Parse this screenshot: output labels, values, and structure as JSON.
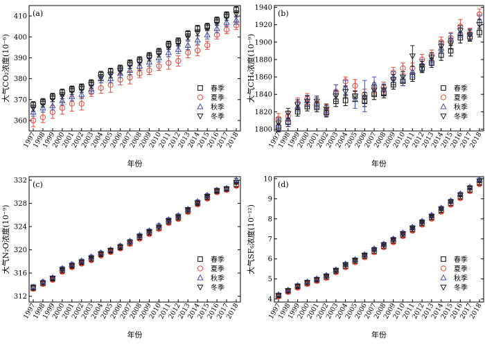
{
  "chart_data": [
    {
      "type": "scatter",
      "panel_label": "(a)",
      "xlabel": "年份",
      "ylabel": "大气CO₂浓度(10⁻⁶)",
      "ylim": [
        355,
        415
      ],
      "yticks": [
        360,
        370,
        380,
        390,
        400,
        410
      ],
      "x": [
        "1997",
        "1998",
        "1999",
        "2000",
        "2001",
        "2002",
        "2003",
        "2004",
        "2005",
        "2006",
        "2007",
        "2008",
        "2009",
        "2010",
        "2011",
        "2012",
        "2013",
        "2014",
        "2015",
        "2016",
        "2017",
        "2018"
      ],
      "series": [
        {
          "name": "春季",
          "marker": "square",
          "color": "#000000",
          "values": [
            367.5,
            369,
            371.5,
            373.5,
            375,
            376,
            378,
            382,
            383.5,
            385,
            387.5,
            389,
            391,
            393,
            396.5,
            398,
            401.5,
            404,
            405,
            408,
            410.5,
            413
          ],
          "err": [
            1.5,
            1.5,
            1.5,
            1.5,
            1.5,
            1.5,
            1.5,
            1.5,
            1.5,
            1.5,
            1.5,
            1.5,
            1.5,
            1.5,
            1.5,
            1.5,
            1.5,
            1.5,
            1.5,
            1.5,
            1.5,
            1.5
          ]
        },
        {
          "name": "夏季",
          "marker": "circle",
          "color": "#e0463b",
          "values": [
            360,
            361.5,
            364,
            366,
            368,
            368,
            373.5,
            375.5,
            377,
            379.5,
            380.5,
            382.5,
            384,
            386,
            387.5,
            388.5,
            392.5,
            393.5,
            396,
            401,
            403.5,
            405.5
          ],
          "err": [
            3,
            2.5,
            3,
            3,
            3.5,
            3,
            2,
            2.5,
            3.5,
            2.5,
            3,
            2,
            2,
            2,
            3,
            2.5,
            2.5,
            2.5,
            2,
            2,
            2,
            2
          ]
        },
        {
          "name": "秋季",
          "marker": "triangle-up",
          "color": "#3a4ea8",
          "values": [
            364,
            366,
            367,
            369.5,
            371.5,
            372.5,
            375,
            380,
            380,
            382.5,
            384,
            386,
            388,
            390,
            392.5,
            394,
            396,
            398.5,
            401,
            404,
            407,
            408
          ],
          "err": [
            2,
            2,
            2,
            2,
            2,
            2,
            2,
            2,
            2,
            2,
            2,
            2,
            2,
            2,
            2,
            2,
            2,
            2,
            2,
            2,
            2,
            2
          ]
        },
        {
          "name": "冬季",
          "marker": "triangle-down",
          "color": "#222222",
          "values": [
            366,
            368,
            370.5,
            372,
            374,
            375,
            377,
            380.5,
            382,
            384,
            386.5,
            388,
            390,
            392,
            395.5,
            397,
            400,
            402,
            404.5,
            407,
            409.5,
            411
          ],
          "err": [
            1.5,
            1.5,
            1.5,
            1.5,
            1.5,
            1.5,
            1.5,
            1.5,
            1.5,
            1.5,
            1.5,
            1.5,
            1.5,
            1.5,
            1.5,
            1.5,
            1.5,
            1.5,
            1.5,
            1.5,
            1.5,
            1.5
          ]
        }
      ],
      "legend": [
        "春季",
        "夏季",
        "秋季",
        "冬季"
      ],
      "legend_position": "lower-right"
    },
    {
      "type": "scatter",
      "panel_label": "(b)",
      "xlabel": "年份",
      "ylabel": "大气CH₄浓度(10⁻⁹)",
      "ylim": [
        1798,
        1942
      ],
      "yticks": [
        1800,
        1820,
        1840,
        1860,
        1880,
        1900,
        1920,
        1940
      ],
      "x": [
        "1997",
        "1998",
        "1999",
        "2000",
        "2001",
        "2002",
        "2003",
        "2004",
        "2005",
        "2006",
        "2007",
        "2008",
        "2009",
        "2010",
        "2011",
        "2012",
        "2013",
        "2014",
        "2015",
        "2016",
        "2017",
        "2018"
      ],
      "series": [
        {
          "name": "春季",
          "marker": "square",
          "color": "#000000",
          "values": [
            1802,
            1808,
            1820,
            1826,
            1825,
            1819,
            1832,
            1833,
            1838,
            1832,
            1840,
            1841,
            1851,
            1855,
            1860,
            1870,
            1876,
            1885,
            1890,
            1905,
            1906,
            1911
          ],
          "err": [
            5,
            5,
            5,
            5,
            5,
            5,
            6,
            6,
            6,
            6,
            6,
            5,
            5,
            5,
            5,
            5,
            5,
            6,
            6,
            6,
            5,
            5
          ]
        },
        {
          "name": "夏季",
          "marker": "circle",
          "color": "#e0463b",
          "values": [
            1812,
            1815,
            1830,
            1835,
            1830,
            1822,
            1843,
            1855,
            1850,
            1840,
            1847,
            1848,
            1865,
            1870,
            1870,
            1880,
            1885,
            1900,
            1905,
            1918,
            1910,
            1932
          ],
          "err": [
            6,
            6,
            6,
            6,
            6,
            6,
            8,
            5,
            7,
            6,
            6,
            6,
            6,
            6,
            6,
            6,
            6,
            6,
            6,
            8,
            6,
            6
          ]
        },
        {
          "name": "秋季",
          "marker": "triangle-up",
          "color": "#3a4ea8",
          "values": [
            1805,
            1812,
            1826,
            1833,
            1830,
            1821,
            1843,
            1848,
            1834,
            1838,
            1852,
            1846,
            1860,
            1856,
            1866,
            1874,
            1880,
            1893,
            1904,
            1911,
            1909,
            1925
          ],
          "err": [
            6,
            6,
            6,
            6,
            6,
            6,
            8,
            8,
            10,
            18,
            8,
            6,
            6,
            6,
            6,
            6,
            6,
            6,
            6,
            6,
            6,
            6
          ]
        },
        {
          "name": "冬季",
          "marker": "triangle-down",
          "color": "#222222",
          "values": [
            1807,
            1818,
            1828,
            1832,
            1832,
            1823,
            1838,
            1843,
            1838,
            1836,
            1845,
            1845,
            1857,
            1860,
            1884,
            1872,
            1882,
            1895,
            1898,
            1913,
            1908,
            1920
          ],
          "err": [
            6,
            6,
            6,
            6,
            6,
            6,
            6,
            6,
            6,
            6,
            6,
            6,
            6,
            6,
            12,
            6,
            6,
            6,
            6,
            6,
            6,
            6
          ]
        }
      ],
      "legend": [
        "春季",
        "夏季",
        "秋季",
        "冬季"
      ],
      "legend_position": "lower-right"
    },
    {
      "type": "scatter",
      "panel_label": "(c)",
      "xlabel": "年份",
      "ylabel": "大气N₂O浓度(10⁻⁹)",
      "ylim": [
        311,
        332.6
      ],
      "yticks": [
        312,
        316,
        320,
        324,
        328,
        332
      ],
      "x": [
        "1997",
        "1998",
        "1999",
        "2000",
        "2001",
        "2002",
        "2003",
        "2004",
        "2005",
        "2006",
        "2007",
        "2008",
        "2009",
        "2010",
        "2011",
        "2012",
        "2013",
        "2014",
        "2015",
        "2016",
        "2017",
        "2018"
      ],
      "series": [
        {
          "name": "春季",
          "marker": "square",
          "color": "#000000",
          "values": [
            313.4,
            314.2,
            315,
            316.4,
            317.2,
            317.8,
            318.4,
            319.2,
            319.8,
            320.4,
            321.1,
            322.1,
            322.9,
            323.7,
            324.8,
            325.5,
            326.7,
            328,
            329,
            330.1,
            330.4,
            331.2
          ],
          "err": [
            0.4,
            0.3,
            0.3,
            0.3,
            0.3,
            0.3,
            0.3,
            0.3,
            0.3,
            0.3,
            0.3,
            0.3,
            0.3,
            0.3,
            0.3,
            0.3,
            0.3,
            0.3,
            0.3,
            0.3,
            0.3,
            0.3
          ]
        },
        {
          "name": "夏季",
          "marker": "circle",
          "color": "#e0463b",
          "values": [
            313.3,
            314.1,
            314.8,
            316.2,
            317,
            317.6,
            318.2,
            319,
            319.6,
            320.2,
            321,
            321.9,
            322.7,
            323.6,
            324.6,
            325.3,
            326.5,
            327.8,
            328.8,
            329.9,
            330.3,
            331
          ],
          "err": [
            0.4,
            0.3,
            0.3,
            0.3,
            0.3,
            0.3,
            0.3,
            0.3,
            0.3,
            0.3,
            0.3,
            0.3,
            0.3,
            0.3,
            0.3,
            0.3,
            0.3,
            0.3,
            0.3,
            0.3,
            0.3,
            0.3
          ]
        },
        {
          "name": "秋季",
          "marker": "triangle-up",
          "color": "#3a4ea8",
          "values": [
            313.6,
            314.5,
            315.2,
            316.8,
            317.5,
            318.1,
            318.8,
            319.5,
            320,
            320.7,
            321.5,
            322.5,
            323.3,
            324.2,
            325.2,
            325.9,
            327,
            328.3,
            329.4,
            330.3,
            330.6,
            332
          ],
          "err": [
            0.4,
            0.3,
            0.3,
            0.3,
            0.3,
            0.3,
            0.3,
            0.3,
            0.3,
            0.3,
            0.3,
            0.3,
            0.3,
            0.3,
            0.3,
            0.3,
            0.3,
            0.3,
            0.3,
            0.3,
            0.3,
            0.3
          ]
        },
        {
          "name": "冬季",
          "marker": "triangle-down",
          "color": "#222222",
          "values": [
            313.5,
            314.3,
            315.1,
            316.6,
            317.3,
            317.9,
            318.6,
            319.3,
            319.9,
            320.5,
            321.3,
            322.3,
            323.1,
            323.9,
            325,
            325.7,
            326.9,
            328.1,
            329.2,
            330.2,
            330.5,
            331.6
          ],
          "err": [
            0.4,
            0.3,
            0.3,
            0.3,
            0.3,
            0.3,
            0.3,
            0.3,
            0.3,
            0.3,
            0.3,
            0.3,
            0.3,
            0.3,
            0.3,
            0.3,
            0.3,
            0.3,
            0.3,
            0.3,
            0.3,
            0.3
          ]
        }
      ],
      "legend": [
        "春季",
        "夏季",
        "秋季",
        "冬季"
      ],
      "legend_position": "lower-right"
    },
    {
      "type": "scatter",
      "panel_label": "(d)",
      "xlabel": "年份",
      "ylabel": "大气SF₆浓度(10⁻¹²)",
      "ylim": [
        3.85,
        10.1
      ],
      "yticks": [
        4,
        5,
        6,
        7,
        8,
        9,
        10
      ],
      "x": [
        "1997",
        "1998",
        "1999",
        "2000",
        "2001",
        "2002",
        "2003",
        "2004",
        "2005",
        "2006",
        "2007",
        "2008",
        "2009",
        "2010",
        "2011",
        "2012",
        "2013",
        "2014",
        "2015",
        "2016",
        "2017",
        "2018"
      ],
      "series": [
        {
          "name": "春季",
          "marker": "square",
          "color": "#000000",
          "values": [
            4.15,
            4.38,
            4.6,
            4.78,
            4.93,
            5.08,
            5.38,
            5.62,
            5.87,
            6.12,
            6.37,
            6.62,
            6.88,
            7.18,
            7.45,
            7.75,
            8.05,
            8.4,
            8.75,
            9.08,
            9.42,
            9.78
          ],
          "err": [
            0.08,
            0.08,
            0.08,
            0.08,
            0.08,
            0.08,
            0.08,
            0.08,
            0.08,
            0.08,
            0.08,
            0.08,
            0.08,
            0.08,
            0.08,
            0.08,
            0.08,
            0.08,
            0.08,
            0.08,
            0.08,
            0.08
          ]
        },
        {
          "name": "夏季",
          "marker": "circle",
          "color": "#e0463b",
          "values": [
            4.12,
            4.35,
            4.56,
            4.75,
            4.9,
            5.05,
            5.33,
            5.58,
            5.83,
            6.08,
            6.33,
            6.58,
            6.83,
            7.13,
            7.4,
            7.7,
            8,
            8.35,
            8.7,
            9.02,
            9.37,
            9.72
          ],
          "err": [
            0.08,
            0.08,
            0.08,
            0.08,
            0.08,
            0.08,
            0.08,
            0.08,
            0.08,
            0.08,
            0.08,
            0.08,
            0.08,
            0.08,
            0.08,
            0.08,
            0.08,
            0.08,
            0.08,
            0.08,
            0.08,
            0.08
          ]
        },
        {
          "name": "秋季",
          "marker": "triangle-up",
          "color": "#3a4ea8",
          "values": [
            4.22,
            4.45,
            4.68,
            4.86,
            5.01,
            5.18,
            5.46,
            5.75,
            5.97,
            6.22,
            6.5,
            6.75,
            7,
            7.3,
            7.58,
            7.88,
            8.18,
            8.54,
            8.9,
            9.25,
            9.58,
            9.95
          ],
          "err": [
            0.08,
            0.08,
            0.08,
            0.08,
            0.08,
            0.08,
            0.08,
            0.08,
            0.08,
            0.08,
            0.08,
            0.08,
            0.08,
            0.08,
            0.08,
            0.08,
            0.08,
            0.08,
            0.08,
            0.08,
            0.08,
            0.08
          ]
        },
        {
          "name": "冬季",
          "marker": "triangle-down",
          "color": "#222222",
          "values": [
            4.18,
            4.42,
            4.64,
            4.82,
            4.97,
            5.14,
            5.43,
            5.7,
            5.93,
            6.18,
            6.45,
            6.7,
            6.95,
            7.25,
            7.53,
            7.82,
            8.12,
            8.48,
            8.84,
            9.18,
            9.52,
            9.88
          ],
          "err": [
            0.08,
            0.08,
            0.08,
            0.08,
            0.08,
            0.08,
            0.08,
            0.08,
            0.08,
            0.08,
            0.08,
            0.08,
            0.08,
            0.08,
            0.08,
            0.08,
            0.08,
            0.08,
            0.08,
            0.08,
            0.08,
            0.08
          ]
        }
      ],
      "legend": [
        "春季",
        "夏季",
        "秋季",
        "冬季"
      ],
      "legend_position": "lower-right"
    }
  ]
}
